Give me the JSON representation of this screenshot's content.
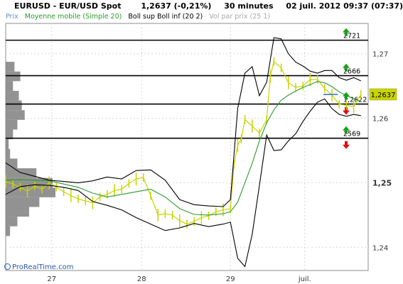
{
  "header": {
    "symbol": "EURUSD - EUR/USD Spot",
    "price": "1,2637 (-0,21%)",
    "timeframe": "30 minutes",
    "datetime": "02 juil. 2012 09:37 (07:37)"
  },
  "legend": [
    {
      "text": "Prix",
      "color": "#6e8fc4"
    },
    {
      "text": "Moyenne mobile (Simple 20)",
      "color": "#2a9a2a"
    },
    {
      "text": "Boll sup Boll inf (20 2)",
      "color": "#000000"
    },
    {
      "text": "Vol par prix (25 1)",
      "color": "#a9a9a9"
    }
  ],
  "watermark": "ProRealTime.com",
  "chart_data": {
    "type": "line",
    "title": "EURUSD - EUR/USD Spot",
    "timeframe": "30 minutes",
    "x_tick_labels": [
      "27",
      "28",
      "29",
      "juil."
    ],
    "y_tick_labels": [
      "1,27",
      "1,26",
      "1,25",
      "1,24"
    ],
    "y_ticks": [
      1.27,
      1.26,
      1.25,
      1.24
    ],
    "ylim": [
      1.2364,
      1.2747
    ],
    "xlim": [
      0,
      100
    ],
    "x_ticks": [
      12.7,
      37.5,
      62.0,
      82.5
    ],
    "current_price": {
      "value": 1.2637,
      "label": "1,2637",
      "color": "#c8d400"
    },
    "levels": [
      {
        "value": 1.2721,
        "label": "2721",
        "up_arrow": true,
        "down_arrow": false
      },
      {
        "value": 1.2666,
        "label": "2666",
        "up_arrow": true,
        "down_arrow": false
      },
      {
        "value": 1.2622,
        "label": "1,2622",
        "up_arrow": true,
        "down_arrow": true
      },
      {
        "value": 1.2569,
        "label": "2569",
        "up_arrow": true,
        "down_arrow": true
      }
    ],
    "series": [
      {
        "name": "Prix",
        "color": "#c8d400",
        "x": [
          0,
          2,
          4,
          6,
          8,
          10,
          12,
          14,
          16,
          18,
          20,
          22,
          24,
          26,
          28,
          30,
          32,
          34,
          36,
          38,
          40,
          42,
          44,
          46,
          48,
          50,
          52,
          54,
          56,
          58,
          60,
          62,
          63,
          64,
          65,
          66,
          68,
          70,
          72,
          73,
          74,
          76,
          78,
          80,
          82,
          84,
          86,
          88,
          90,
          92,
          94,
          96,
          98
        ],
        "y": [
          1.2502,
          1.2498,
          1.2493,
          1.2487,
          1.2495,
          1.249,
          1.25,
          1.2493,
          1.2486,
          1.248,
          1.2475,
          1.2472,
          1.2469,
          1.2478,
          1.2482,
          1.2488,
          1.249,
          1.2499,
          1.2506,
          1.2508,
          1.248,
          1.245,
          1.2452,
          1.245,
          1.2441,
          1.2436,
          1.244,
          1.2446,
          1.2449,
          1.2455,
          1.2458,
          1.246,
          1.2528,
          1.2558,
          1.2568,
          1.2598,
          1.2588,
          1.2577,
          1.2598,
          1.2665,
          1.2688,
          1.2678,
          1.2655,
          1.2648,
          1.265,
          1.266,
          1.266,
          1.2646,
          1.2636,
          1.2622,
          1.262,
          1.2618,
          1.2637
        ]
      },
      {
        "name": "Moyenne mobile (Simple 20)",
        "color": "#2a9a2a",
        "x": [
          0,
          4,
          8,
          12,
          16,
          20,
          24,
          28,
          32,
          36,
          40,
          44,
          48,
          52,
          56,
          60,
          62,
          64,
          66,
          68,
          70,
          72,
          74,
          76,
          78,
          80,
          82,
          84,
          86,
          88,
          90,
          92,
          94,
          96,
          98
        ],
        "y": [
          1.2504,
          1.2505,
          1.2504,
          1.2503,
          1.2498,
          1.2493,
          1.2484,
          1.2478,
          1.2482,
          1.2486,
          1.249,
          1.2478,
          1.246,
          1.2451,
          1.245,
          1.2452,
          1.2455,
          1.247,
          1.25,
          1.253,
          1.2565,
          1.2593,
          1.2613,
          1.2628,
          1.2636,
          1.2642,
          1.2648,
          1.2652,
          1.2657,
          1.2655,
          1.2649,
          1.2641,
          1.2635,
          1.263,
          1.2626
        ]
      },
      {
        "name": "Boll sup",
        "color": "#000000",
        "x": [
          0,
          4,
          8,
          12,
          16,
          20,
          24,
          28,
          32,
          36,
          40,
          44,
          48,
          52,
          56,
          60,
          62,
          64,
          66,
          68,
          70,
          72,
          74,
          76,
          78,
          80,
          82,
          84,
          86,
          88,
          90,
          92,
          94,
          96,
          98
        ],
        "y": [
          1.2531,
          1.2516,
          1.251,
          1.2504,
          1.2502,
          1.25,
          1.2503,
          1.2509,
          1.2506,
          1.2519,
          1.252,
          1.2504,
          1.2474,
          1.2466,
          1.2464,
          1.2463,
          1.2474,
          1.2615,
          1.267,
          1.268,
          1.2635,
          1.2656,
          1.2725,
          1.2723,
          1.27,
          1.2687,
          1.2681,
          1.2673,
          1.267,
          1.2674,
          1.2674,
          1.2663,
          1.2659,
          1.2663,
          1.2658
        ]
      },
      {
        "name": "Boll inf",
        "color": "#000000",
        "x": [
          0,
          4,
          8,
          12,
          16,
          20,
          24,
          28,
          32,
          36,
          40,
          44,
          48,
          52,
          56,
          60,
          62,
          64,
          66,
          68,
          70,
          72,
          74,
          76,
          78,
          80,
          82,
          84,
          86,
          88,
          90,
          92,
          94,
          96,
          98
        ],
        "y": [
          1.2482,
          1.2494,
          1.2497,
          1.2496,
          1.2493,
          1.2488,
          1.2471,
          1.2465,
          1.2458,
          1.2446,
          1.2436,
          1.2426,
          1.243,
          1.2437,
          1.2432,
          1.2436,
          1.2439,
          1.2383,
          1.237,
          1.242,
          1.2496,
          1.2574,
          1.255,
          1.2551,
          1.2565,
          1.2576,
          1.2595,
          1.2611,
          1.2625,
          1.263,
          1.2615,
          1.2606,
          1.2603,
          1.2606,
          1.2604
        ]
      }
    ],
    "volume_profile": {
      "name": "Vol par prix (25 1)",
      "color": "#7f7f7f",
      "levels": [
        1.2425,
        1.244,
        1.2455,
        1.247,
        1.2485,
        1.25,
        1.2515,
        1.253,
        1.2545,
        1.256,
        1.2575,
        1.259,
        1.2605,
        1.262,
        1.2635,
        1.265,
        1.2665,
        1.268
      ],
      "values": [
        1.5,
        4.0,
        8.0,
        11.5,
        17.0,
        16.0,
        10.5,
        4.0,
        1.5,
        1.0,
        2.5,
        4.0,
        6.5,
        5.5,
        4.5,
        2.5,
        5.0,
        3.0
      ]
    }
  }
}
